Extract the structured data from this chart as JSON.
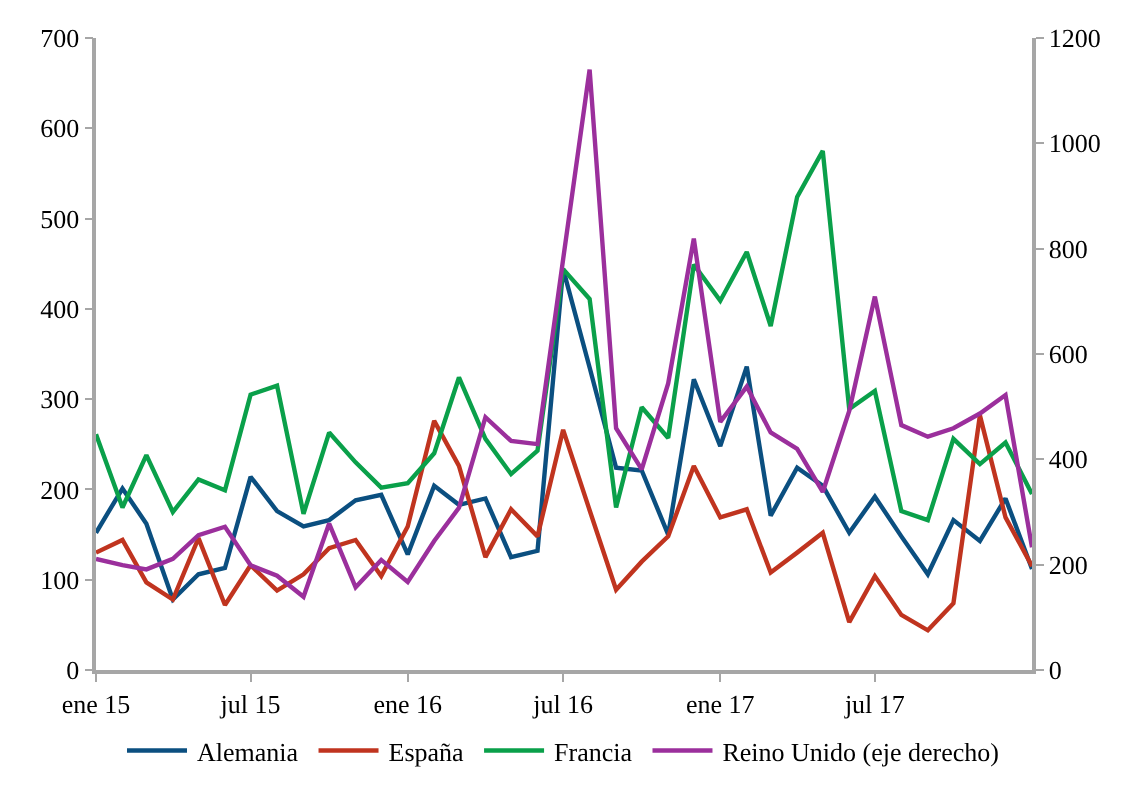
{
  "chart_data": {
    "type": "line",
    "x": [
      "2015-01",
      "2015-02",
      "2015-03",
      "2015-04",
      "2015-05",
      "2015-06",
      "2015-07",
      "2015-08",
      "2015-09",
      "2015-10",
      "2015-11",
      "2015-12",
      "2016-01",
      "2016-02",
      "2016-03",
      "2016-04",
      "2016-05",
      "2016-06",
      "2016-07",
      "2016-08",
      "2016-09",
      "2016-10",
      "2016-11",
      "2016-12",
      "2017-01",
      "2017-02",
      "2017-03",
      "2017-04",
      "2017-05",
      "2017-06",
      "2017-07",
      "2017-08",
      "2017-09",
      "2017-10",
      "2017-11",
      "2017-12",
      "2018-01"
    ],
    "xlim": [
      "2015-01",
      "2018-01"
    ],
    "xticks": [
      {
        "value": "2015-01",
        "label": "ene 15"
      },
      {
        "value": "2015-07",
        "label": "jul 15"
      },
      {
        "value": "2016-01",
        "label": "ene 16"
      },
      {
        "value": "2016-07",
        "label": "jul 16"
      },
      {
        "value": "2017-01",
        "label": "ene 17"
      },
      {
        "value": "2017-07",
        "label": "jul 17"
      }
    ],
    "ylim": [
      0,
      700
    ],
    "yticks": [
      0,
      100,
      200,
      300,
      400,
      500,
      600,
      700
    ],
    "y2lim": [
      0,
      1200
    ],
    "y2ticks": [
      0,
      200,
      400,
      600,
      800,
      1000,
      1200
    ],
    "series": [
      {
        "name": "Alemania",
        "color": "#0b4f80",
        "values": [
          152,
          201,
          162,
          78,
          106,
          113,
          214,
          176,
          159,
          166,
          188,
          194,
          128,
          204,
          183,
          190,
          125,
          132,
          444,
          335,
          224,
          221,
          150,
          322,
          248,
          336,
          171,
          224,
          204,
          152,
          192,
          148,
          106,
          166,
          143,
          190,
          112
        ]
      },
      {
        "name": "España",
        "color": "#c0341f",
        "values": [
          130,
          144,
          97,
          78,
          146,
          72,
          116,
          88,
          106,
          135,
          144,
          104,
          159,
          276,
          226,
          125,
          178,
          148,
          266,
          177,
          89,
          120,
          148,
          226,
          169,
          178,
          108,
          130,
          152,
          53,
          104,
          61,
          44,
          74,
          282,
          169,
          115
        ]
      },
      {
        "name": "Francia",
        "color": "#0aa04a",
        "values": [
          261,
          180,
          238,
          175,
          211,
          199,
          305,
          315,
          173,
          263,
          230,
          202,
          207,
          240,
          324,
          256,
          217,
          243,
          444,
          411,
          180,
          291,
          257,
          449,
          409,
          463,
          381,
          524,
          575,
          289,
          309,
          176,
          166,
          256,
          228,
          252,
          195
        ]
      },
      {
        "name": "Reino Unido (eje derecho)",
        "color": "#9b2f9c",
        "axis": "y2",
        "values": [
          211,
          199,
          191,
          211,
          256,
          272,
          199,
          179,
          139,
          278,
          157,
          209,
          167,
          245,
          308,
          480,
          435,
          429,
          780,
          1140,
          459,
          381,
          544,
          819,
          471,
          538,
          451,
          420,
          338,
          492,
          709,
          465,
          443,
          459,
          487,
          522,
          233
        ]
      }
    ],
    "legend": "bottom"
  }
}
